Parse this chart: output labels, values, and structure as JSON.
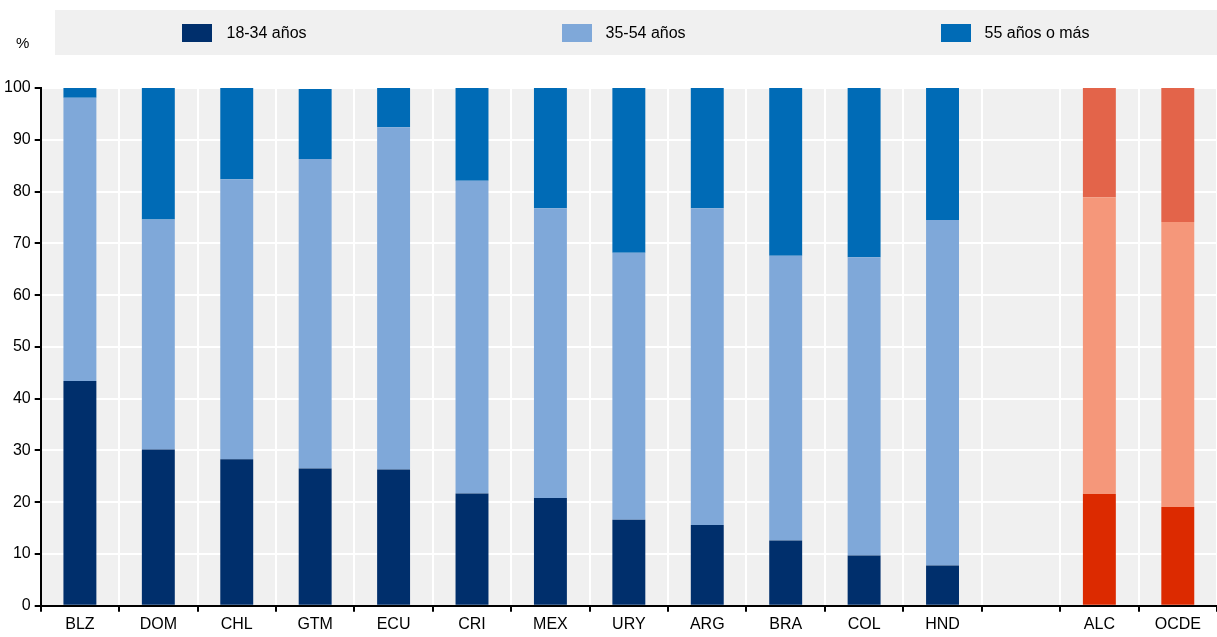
{
  "chart_data": {
    "type": "bar",
    "stacked": true,
    "ylabel": "%",
    "categories": [
      "BLZ",
      "DOM",
      "CHL",
      "GTM",
      "ECU",
      "CRI",
      "MEX",
      "URY",
      "ARG",
      "BRA",
      "COL",
      "HND",
      null,
      "ALC",
      "OCDE"
    ],
    "series": [
      {
        "name": "18-34 años",
        "color": "#002f6c",
        "colors": [
          "#002f6c",
          "#002f6c",
          "#002f6c",
          "#002f6c",
          "#002f6c",
          "#002f6c",
          "#002f6c",
          "#002f6c",
          "#002f6c",
          "#002f6c",
          "#002f6c",
          "#002f6c",
          "#002f6c",
          "#dc2a00",
          "#dc2a00"
        ],
        "values": [
          43.4,
          30.2,
          28.3,
          26.5,
          26.3,
          21.7,
          20.8,
          16.6,
          15.6,
          12.6,
          9.7,
          7.8,
          null,
          21.6,
          19.1
        ]
      },
      {
        "name": "35-54 años",
        "color": "#7fa8d9",
        "colors": [
          "#7fa8d9",
          "#7fa8d9",
          "#7fa8d9",
          "#7fa8d9",
          "#7fa8d9",
          "#7fa8d9",
          "#7fa8d9",
          "#7fa8d9",
          "#7fa8d9",
          "#7fa8d9",
          "#7fa8d9",
          "#7fa8d9",
          "#7fa8d9",
          "#f5977a",
          "#f5977a"
        ],
        "values": [
          54.7,
          44.4,
          54.1,
          59.8,
          66.1,
          60.4,
          56.0,
          51.6,
          61.2,
          55.0,
          57.6,
          66.7,
          null,
          57.3,
          55.0
        ]
      },
      {
        "name": "55 años o más",
        "color": "#006bb6",
        "colors": [
          "#006bb6",
          "#006bb6",
          "#006bb6",
          "#006bb6",
          "#006bb6",
          "#006bb6",
          "#006bb6",
          "#006bb6",
          "#006bb6",
          "#006bb6",
          "#006bb6",
          "#006bb6",
          "#006bb6",
          "#e3644a",
          "#e3644a"
        ],
        "values": [
          1.9,
          25.4,
          17.6,
          13.5,
          7.6,
          17.9,
          23.2,
          31.8,
          23.2,
          32.4,
          32.7,
          25.5,
          null,
          21.1,
          25.9
        ]
      }
    ],
    "ylim": [
      0,
      100
    ],
    "yticks": [
      0,
      10,
      20,
      30,
      40,
      50,
      60,
      70,
      80,
      90,
      100
    ],
    "grid": true,
    "legend": "top"
  }
}
